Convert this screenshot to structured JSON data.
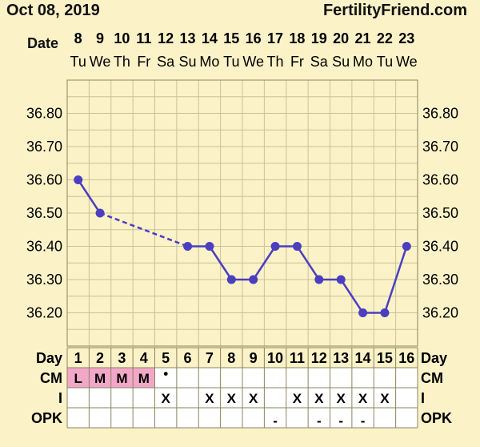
{
  "header": {
    "chart_date": "Oct 08, 2019",
    "site": "FertilityFriend.com",
    "date_label": "Date"
  },
  "chart_data": {
    "type": "line",
    "dates": [
      "8",
      "9",
      "10",
      "11",
      "12",
      "13",
      "14",
      "15",
      "16",
      "17",
      "18",
      "19",
      "20",
      "21",
      "22",
      "23"
    ],
    "weekdays": [
      "Tu",
      "We",
      "Th",
      "Fr",
      "Sa",
      "Su",
      "Mo",
      "Tu",
      "We",
      "Th",
      "Fr",
      "Sa",
      "Su",
      "Mo",
      "Tu",
      "We"
    ],
    "cycle_days": [
      "1",
      "2",
      "3",
      "4",
      "5",
      "6",
      "7",
      "8",
      "9",
      "10",
      "11",
      "12",
      "13",
      "14",
      "15",
      "16"
    ],
    "temperatures": [
      36.6,
      36.5,
      null,
      null,
      null,
      36.4,
      36.4,
      36.3,
      36.3,
      36.4,
      36.4,
      36.3,
      36.3,
      36.2,
      36.2,
      36.4
    ],
    "ylim": [
      36.1,
      36.9
    ],
    "yticks": [
      "36.80",
      "36.70",
      "36.60",
      "36.50",
      "36.40",
      "36.30",
      "36.20"
    ],
    "gap_style": "dashed",
    "grid": true,
    "line_color": "#4b3fbf"
  },
  "table": {
    "day_label": "Day",
    "rows": [
      {
        "label": "CM",
        "cells": [
          "L",
          "M",
          "M",
          "M",
          "•",
          "",
          "",
          "",
          "",
          "",
          "",
          "",
          "",
          "",
          "",
          ""
        ],
        "highlight": [
          true,
          true,
          true,
          true,
          false,
          false,
          false,
          false,
          false,
          false,
          false,
          false,
          false,
          false,
          false,
          false
        ]
      },
      {
        "label": "I",
        "cells": [
          "",
          "",
          "",
          "",
          "X",
          "",
          "X",
          "X",
          "X",
          "",
          "X",
          "X",
          "X",
          "X",
          "X",
          ""
        ]
      },
      {
        "label": "OPK",
        "cells": [
          "",
          "",
          "",
          "",
          "",
          "",
          "",
          "",
          "",
          "-",
          "",
          "-",
          "-",
          "-",
          "",
          ""
        ]
      }
    ],
    "highlight_color": "#f2a7c8"
  }
}
